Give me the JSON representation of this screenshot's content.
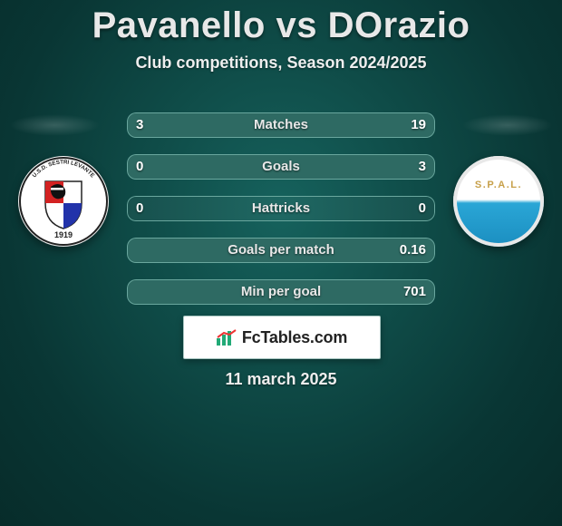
{
  "header": {
    "player_a": "Pavanello",
    "vs": "vs",
    "player_b": "DOrazio",
    "subtitle": "Club competitions, Season 2024/2025"
  },
  "colors": {
    "bar_fill": "#2e6a63",
    "bar_outline": "#6aa79e",
    "bg_inner": "#16625d",
    "bg_outer": "#072c2a",
    "text": "#e8e8e8"
  },
  "rows": [
    {
      "label": "Matches",
      "left": "3",
      "right": "19",
      "fill_left_pct": 14,
      "fill_right_pct": 86
    },
    {
      "label": "Goals",
      "left": "0",
      "right": "3",
      "fill_left_pct": 0,
      "fill_right_pct": 100
    },
    {
      "label": "Hattricks",
      "left": "0",
      "right": "0",
      "fill_left_pct": 0,
      "fill_right_pct": 0
    },
    {
      "label": "Goals per match",
      "left": "",
      "right": "0.16",
      "fill_left_pct": 0,
      "fill_right_pct": 100
    },
    {
      "label": "Min per goal",
      "left": "",
      "right": "701",
      "fill_left_pct": 0,
      "fill_right_pct": 100
    }
  ],
  "clubs": {
    "left": {
      "name": "Sestri Levante",
      "badge_text_top": "U.S.D. SESTRI LEVANTE",
      "badge_year": "1919"
    },
    "right": {
      "name": "SPAL",
      "badge_text": "S.P.A.L."
    }
  },
  "brand": {
    "text": "FcTables.com"
  },
  "date": "11 march 2025"
}
